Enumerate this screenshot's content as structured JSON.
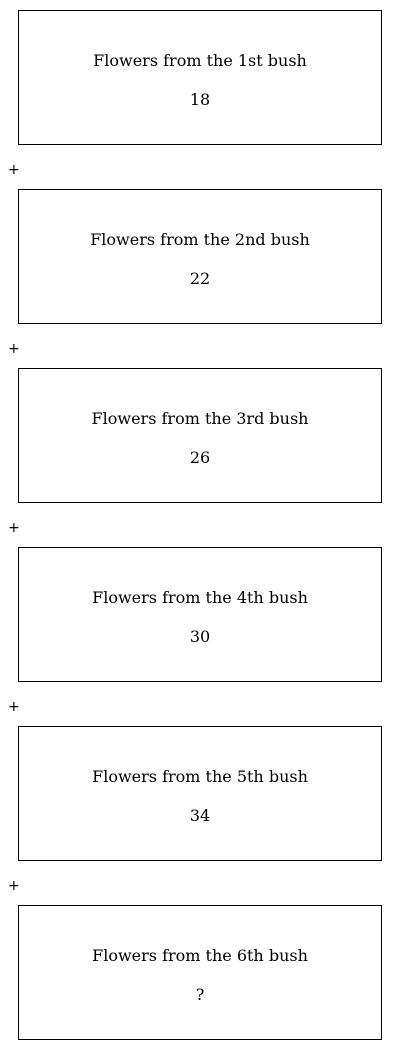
{
  "boxes": [
    {
      "label": "Flowers from the 1st bush",
      "value": "18"
    },
    {
      "label": "Flowers from the 2nd bush",
      "value": "22"
    },
    {
      "label": "Flowers from the 3rd bush",
      "value": "26"
    },
    {
      "label": "Flowers from the 4th bush",
      "value": "30"
    },
    {
      "label": "Flowers from the 5th bush",
      "value": "34"
    },
    {
      "label": "Flowers from the 6th bush",
      "value": "?"
    }
  ],
  "operator": "+"
}
